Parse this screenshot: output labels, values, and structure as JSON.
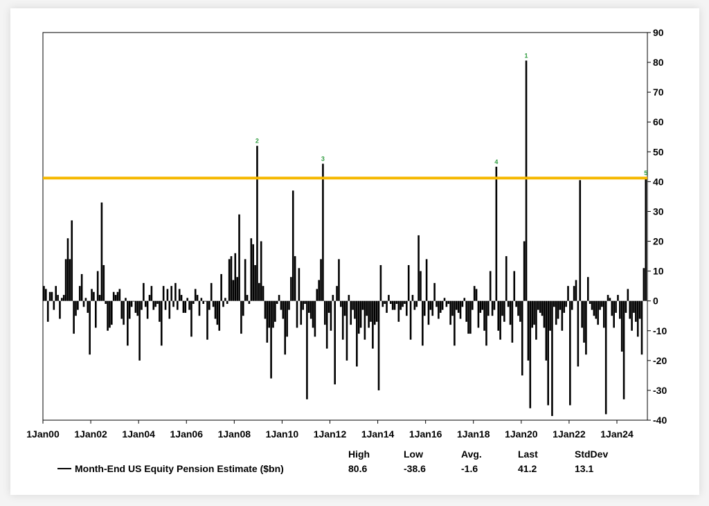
{
  "chart_data": {
    "type": "bar",
    "series_name": "Month-End US Equity Pension Estimate ($bn)",
    "frequency": "monthly",
    "start": "Jan 2000",
    "end": "Mar 2025",
    "values": [
      5,
      4,
      -7,
      3,
      3,
      -3,
      5,
      2,
      -6,
      1,
      2,
      14,
      21,
      14,
      27,
      -11,
      -5,
      -3,
      5,
      9,
      -2,
      1,
      -4,
      -18,
      4,
      3,
      -9,
      10,
      2,
      33,
      12,
      -1,
      -10,
      -9,
      -8,
      3,
      2,
      3,
      4,
      -6,
      -8,
      1,
      -15,
      -6,
      -2,
      0,
      -4,
      -5,
      -20,
      -3,
      6,
      -2,
      -6,
      2,
      5,
      -3,
      -2,
      -1,
      -7,
      -15,
      5,
      -3,
      4,
      -6,
      5,
      -2,
      6,
      -3,
      4,
      2,
      -4,
      -4,
      1,
      -3,
      -12,
      -1,
      4,
      2,
      -5,
      1,
      -1,
      0,
      -13,
      -3,
      6,
      -2,
      -6,
      -8,
      -10,
      9,
      -2,
      1,
      -1,
      14,
      15,
      7,
      16,
      8,
      29,
      -11,
      -5,
      14,
      2,
      -1,
      21,
      19,
      12,
      52,
      6,
      20,
      5,
      -6,
      -14,
      -9,
      -26,
      -9,
      -7,
      -1,
      2,
      -3,
      -6,
      -18,
      -12,
      -3,
      8,
      37,
      15,
      -9,
      11,
      -8,
      -3,
      -1,
      -33,
      -4,
      -6,
      -9,
      -12,
      4,
      7,
      14,
      46,
      -8,
      -16,
      -4,
      -10,
      2,
      -28,
      5,
      14,
      -2,
      -13,
      -5,
      -20,
      2,
      -8,
      -3,
      -6,
      -22,
      -11,
      -9,
      -3,
      -13,
      -5,
      -9,
      -7,
      -16,
      -8,
      -7,
      -30,
      12,
      -2,
      -1,
      -4,
      2,
      -1,
      -3,
      -3,
      -1,
      -7,
      -3,
      -2,
      -1,
      -5,
      12,
      -13,
      2,
      -3,
      -2,
      22,
      10,
      -15,
      -5,
      14,
      -8,
      -3,
      -5,
      6,
      -2,
      -6,
      -4,
      -3,
      1,
      -2,
      -1,
      -8,
      -5,
      -15,
      -3,
      -4,
      -6,
      -2,
      1,
      -7,
      -11,
      -11,
      -3,
      5,
      4,
      -9,
      -4,
      -3,
      -10,
      -15,
      -5,
      10,
      -5,
      -3,
      45,
      -10,
      -13,
      -5,
      -7,
      15,
      -2,
      -8,
      -14,
      10,
      -2,
      -5,
      -7,
      -25,
      20,
      80.6,
      -20,
      -36,
      -9,
      -8,
      -13,
      -3,
      -4,
      -5,
      -9,
      -20,
      -35,
      -10,
      -38.6,
      -2,
      -8,
      -6,
      -3,
      -10,
      -4,
      -2,
      5,
      -35,
      -3,
      5,
      7,
      -22,
      40.5,
      -9,
      -14,
      -18,
      8,
      -1,
      -3,
      -5,
      -6,
      -8,
      -3,
      -2,
      -9,
      -38,
      2,
      1,
      -5,
      -9,
      -4,
      2,
      -6,
      -17,
      -33,
      -4,
      4,
      -6,
      -10,
      -4,
      -7,
      -12,
      -6,
      -18,
      11,
      41.2
    ],
    "threshold_line": {
      "value": 41.2,
      "color": "#f5b800"
    },
    "annotations": [
      {
        "label": "1",
        "index": 242
      },
      {
        "label": "2",
        "index": 107
      },
      {
        "label": "3",
        "index": 140
      },
      {
        "label": "4",
        "index": 227
      },
      {
        "label": "5",
        "index": 302
      }
    ],
    "ylim": [
      -40,
      90
    ],
    "yticks": [
      90,
      80,
      70,
      60,
      50,
      40,
      30,
      20,
      10,
      0,
      -10,
      -20,
      -30,
      -40
    ],
    "y_axis_side": "right",
    "xtick_labels": [
      "1Jan00",
      "1Jan02",
      "1Jan04",
      "1Jan06",
      "1Jan08",
      "1Jan10",
      "1Jan12",
      "1Jan14",
      "1Jan16",
      "1Jan18",
      "1Jan20",
      "1Jan22",
      "1Jan24"
    ],
    "legend": {
      "placement": "bottom",
      "label": "Month-End US Equity Pension Estimate ($bn)",
      "stats_headers": [
        "High",
        "Low",
        "Avg.",
        "Last",
        "StdDev"
      ],
      "stats_values": [
        "80.6",
        "-38.6",
        "-1.6",
        "41.2",
        "13.1"
      ]
    },
    "grid": false,
    "bar_color": "#000000",
    "annotation_color": "#2e9b3e"
  }
}
